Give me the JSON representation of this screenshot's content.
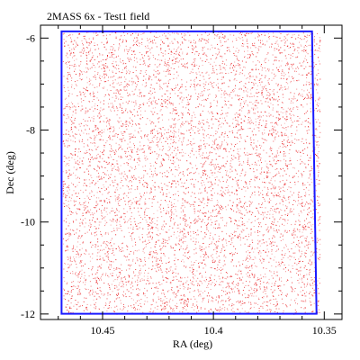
{
  "chart_data": {
    "type": "scatter",
    "title": "2MASS 6x - Test1 field",
    "xlabel": "RA (deg)",
    "ylabel": "Dec (deg)",
    "xlim": [
      10.478,
      10.342
    ],
    "ylim": [
      -12.12,
      -5.72
    ],
    "x_inverted": true,
    "x_ticks": [
      10.45,
      10.4,
      10.35
    ],
    "x_tick_labels": [
      "10.45",
      "10.4",
      "10.35"
    ],
    "y_ticks": [
      -6,
      -8,
      -10,
      -12
    ],
    "y_tick_labels": [
      "-6",
      "-8",
      "-10",
      "-12"
    ],
    "x_minor_step": 0.01,
    "y_minor_step": 0.5,
    "grid": false,
    "legend": "none",
    "point_color": "#e8191c",
    "boundary_color": "#1a1aff",
    "series": [
      {
        "kind": "points",
        "point_count": 7000,
        "ra_range": [
          10.468,
          10.352
        ],
        "dec_range": [
          -12.0,
          -5.85
        ]
      },
      {
        "kind": "field-boundary",
        "polygon": [
          [
            10.4685,
            -5.855
          ],
          [
            10.3555,
            -5.855
          ],
          [
            10.3535,
            -11.995
          ],
          [
            10.4685,
            -11.995
          ]
        ]
      }
    ]
  }
}
